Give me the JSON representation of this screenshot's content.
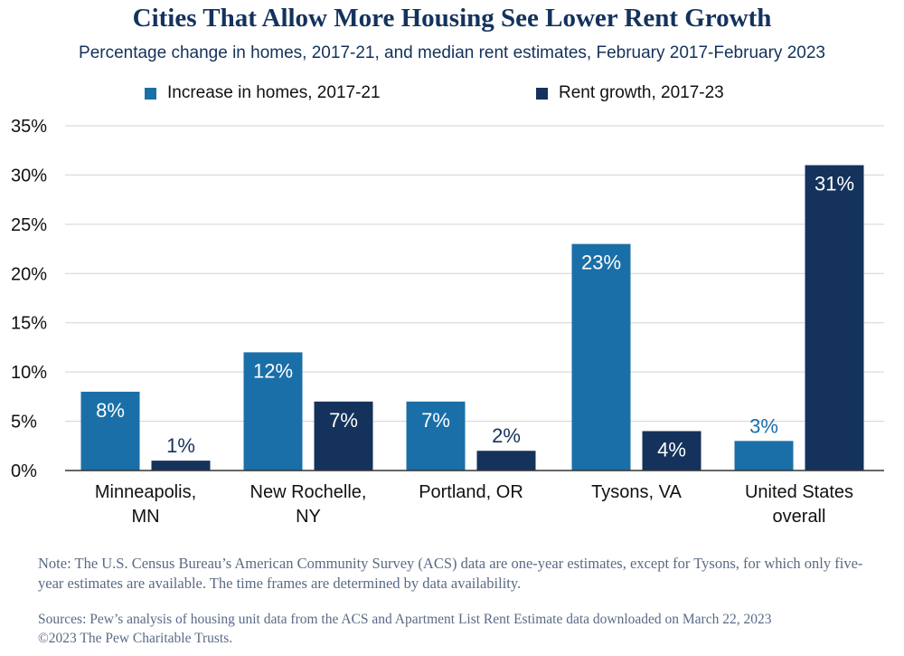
{
  "chart_data": {
    "type": "bar",
    "title": "Cities That Allow More Housing See Lower Rent Growth",
    "subtitle": "Percentage change in homes, 2017-21, and median rent estimates, February 2017-February 2023",
    "categories": [
      [
        "Minneapolis,",
        "MN"
      ],
      [
        "New Rochelle,",
        "NY"
      ],
      [
        "Portland, OR"
      ],
      [
        "Tysons, VA"
      ],
      [
        "United States",
        "overall"
      ]
    ],
    "series": [
      {
        "name": "Increase in homes, 2017-21",
        "color": "#1a6fa8",
        "values": [
          8,
          12,
          7,
          23,
          3
        ],
        "labels": [
          "8%",
          "12%",
          "7%",
          "23%",
          "3%"
        ]
      },
      {
        "name": "Rent growth, 2017-23",
        "color": "#14325c",
        "values": [
          1,
          7,
          2,
          4,
          31
        ],
        "labels": [
          "1%",
          "7%",
          "2%",
          "4%",
          "31%"
        ]
      }
    ],
    "ylim": [
      0,
      35
    ],
    "yticks": [
      0,
      5,
      10,
      15,
      20,
      25,
      30,
      35
    ],
    "ytick_labels": [
      "0%",
      "5%",
      "10%",
      "15%",
      "20%",
      "25%",
      "30%",
      "35%"
    ],
    "grid": true,
    "legend_position": "top"
  },
  "footer": {
    "note": "Note: The U.S. Census Bureau’s American Community Survey (ACS) data are one-year estimates, except for Tysons, for which only five-year estimates are available. The time frames are determined by data availability.",
    "sources": "Sources: Pew’s analysis of housing unit data from the ACS and Apartment List Rent Estimate data downloaded on March 22, 2023",
    "copyright": "©2023 The Pew Charitable Trusts."
  }
}
